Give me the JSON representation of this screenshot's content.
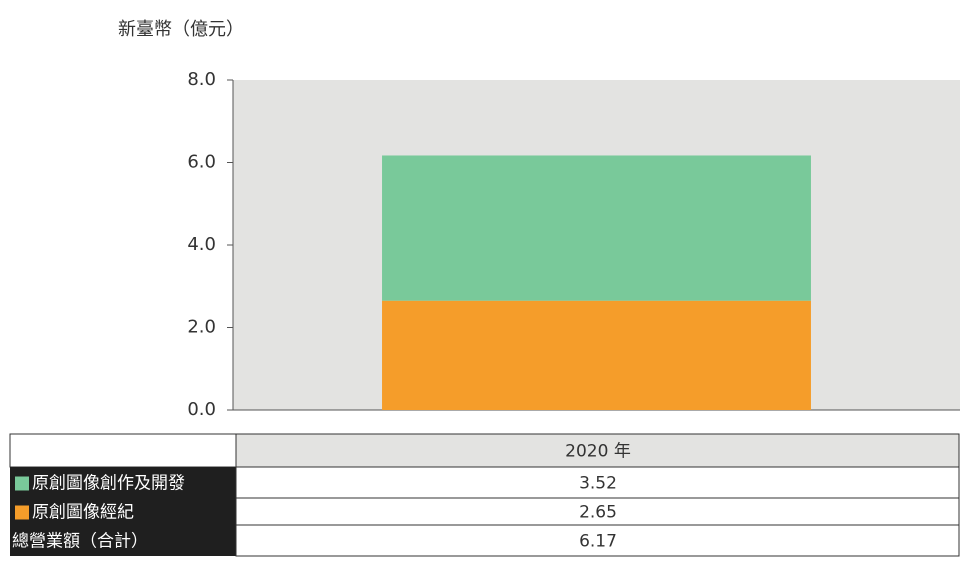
{
  "chart_data": {
    "type": "bar",
    "y_label": "新臺幣（億元）",
    "categories": [
      "2020 年"
    ],
    "series": [
      {
        "name": "原創圖像創作及開發",
        "color": "#79c99a",
        "values": [
          3.52
        ]
      },
      {
        "name": "原創圖像經紀",
        "color": "#f59d2a",
        "values": [
          2.65
        ]
      }
    ],
    "total": {
      "name": "總營業額（合計）",
      "values": [
        6.17
      ]
    },
    "stacked": true,
    "ylim": [
      0,
      8
    ],
    "yticks": [
      {
        "value": 0,
        "label": "0.0"
      },
      {
        "value": 2,
        "label": "2.0"
      },
      {
        "value": 4,
        "label": "4.0"
      },
      {
        "value": 6,
        "label": "6.0"
      },
      {
        "value": 8,
        "label": "8.0"
      }
    ]
  }
}
